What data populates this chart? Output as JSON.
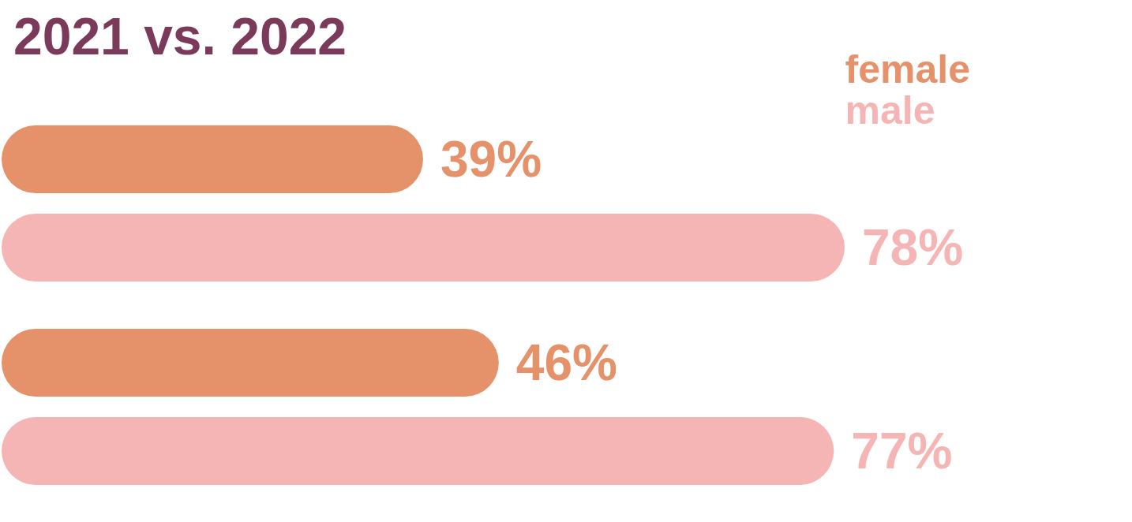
{
  "chart_data": {
    "type": "bar",
    "title": "2021 vs. 2022",
    "orientation": "horizontal",
    "categories": [
      null,
      null
    ],
    "legend": "top right",
    "tick_labels": false,
    "series": [
      {
        "name": "female",
        "color": "#e5916a",
        "values": [
          39,
          46
        ],
        "value_labels": [
          "39%",
          "46%"
        ]
      },
      {
        "name": "male",
        "color": "#f5b5b5",
        "values": [
          78,
          77
        ],
        "value_labels": [
          "78%",
          "77%"
        ]
      }
    ]
  }
}
